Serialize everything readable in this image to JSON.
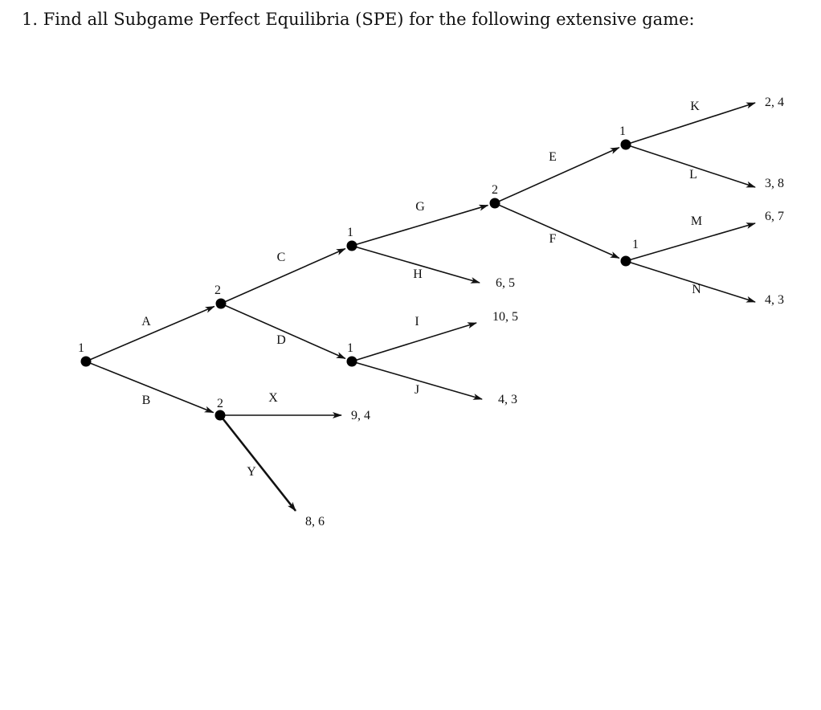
{
  "question": "1. Find all Subgame Perfect Equilibria (SPE) for the following extensive game:",
  "tree": {
    "nodes": [
      {
        "id": "root",
        "player": "1"
      },
      {
        "id": "n2a",
        "player": "2"
      },
      {
        "id": "n2b",
        "player": "2"
      },
      {
        "id": "n1c",
        "player": "1"
      },
      {
        "id": "n1d",
        "player": "1"
      },
      {
        "id": "n2g",
        "player": "2"
      },
      {
        "id": "n1e",
        "player": "1"
      },
      {
        "id": "n1f",
        "player": "1"
      }
    ],
    "edges": [
      {
        "from": "root",
        "to": "n2a",
        "action": "A"
      },
      {
        "from": "root",
        "to": "n2b",
        "action": "B"
      },
      {
        "from": "n2a",
        "to": "n1c",
        "action": "C"
      },
      {
        "from": "n2a",
        "to": "n1d",
        "action": "D"
      },
      {
        "from": "n2b",
        "to": "tX",
        "action": "X",
        "payoff": "9, 4"
      },
      {
        "from": "n2b",
        "to": "tY",
        "action": "Y",
        "payoff": "8, 6"
      },
      {
        "from": "n1c",
        "to": "n2g",
        "action": "G"
      },
      {
        "from": "n1c",
        "to": "tH",
        "action": "H",
        "payoff": "6, 5"
      },
      {
        "from": "n1d",
        "to": "tI",
        "action": "I",
        "payoff": "10, 5"
      },
      {
        "from": "n1d",
        "to": "tJ",
        "action": "J",
        "payoff": "4, 3"
      },
      {
        "from": "n2g",
        "to": "n1e",
        "action": "E"
      },
      {
        "from": "n2g",
        "to": "n1f",
        "action": "F"
      },
      {
        "from": "n1e",
        "to": "tK",
        "action": "K",
        "payoff": "2, 4"
      },
      {
        "from": "n1e",
        "to": "tL",
        "action": "L",
        "payoff": "3, 8"
      },
      {
        "from": "n1f",
        "to": "tM",
        "action": "M",
        "payoff": "6, 7"
      },
      {
        "from": "n1f",
        "to": "tN",
        "action": "N",
        "payoff": "4, 3"
      }
    ]
  }
}
